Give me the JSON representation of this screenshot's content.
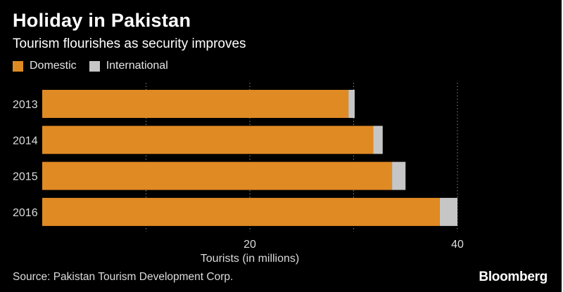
{
  "header": {
    "title": "Holiday in Pakistan",
    "subtitle": "Tourism flourishes as security improves"
  },
  "legend": [
    {
      "label": "Domestic",
      "color": "#e08a24"
    },
    {
      "label": "International",
      "color": "#c6c6c6"
    }
  ],
  "chart_data": {
    "type": "bar",
    "orientation": "horizontal",
    "stacked": true,
    "title": "Holiday in Pakistan",
    "subtitle": "Tourism flourishes as security improves",
    "categories": [
      "2013",
      "2014",
      "2015",
      "2016"
    ],
    "series": [
      {
        "name": "Domestic",
        "color": "#e08a24",
        "values": [
          29.5,
          31.9,
          33.7,
          38.3
        ]
      },
      {
        "name": "International",
        "color": "#c6c6c6",
        "values": [
          0.6,
          0.9,
          1.3,
          1.7
        ]
      }
    ],
    "xlabel": "Tourists (in millions)",
    "xlim": [
      0,
      40
    ],
    "xticks": [
      20,
      40
    ],
    "gridlines": [
      10,
      20,
      30,
      40
    ],
    "legend_position": "top-left"
  },
  "footer": {
    "source": "Source: Pakistan Tourism Development Corp.",
    "brand": "Bloomberg"
  }
}
